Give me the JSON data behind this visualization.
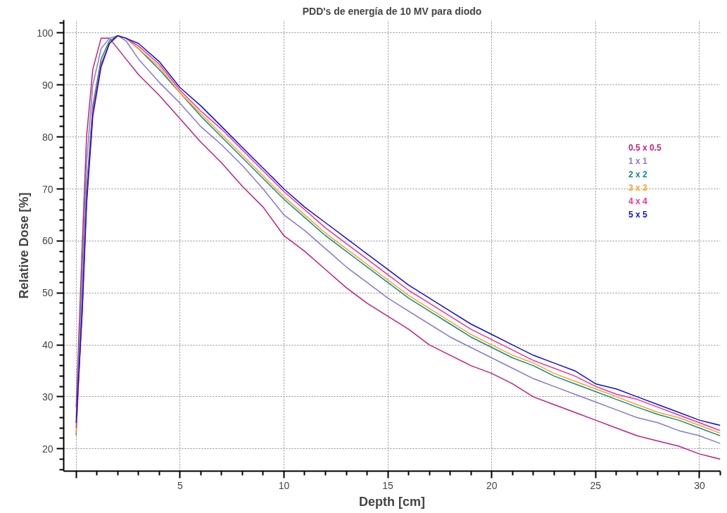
{
  "chart_data": {
    "type": "line",
    "title": "PDD's de energía de 10 MV para diodo",
    "xlabel": "Depth [cm]",
    "ylabel": "Relative Dose [%]",
    "x": [
      0,
      0.3,
      0.5,
      0.8,
      1.2,
      1.6,
      2,
      2.4,
      3,
      4,
      5,
      6,
      7,
      8,
      9,
      10,
      11,
      12,
      13,
      14,
      15,
      16,
      17,
      18,
      19,
      20,
      21,
      22,
      23,
      24,
      25,
      26,
      27,
      28,
      29,
      30,
      31
    ],
    "xlim": [
      -0.6,
      31
    ],
    "ylim": [
      15.7,
      102.5
    ],
    "xticks": [
      {
        "value": 0,
        "label": null
      },
      5,
      10,
      15,
      20,
      25,
      30
    ],
    "yticks": [
      20,
      30,
      40,
      50,
      60,
      70,
      80,
      90,
      100
    ],
    "grid": true,
    "legend": "right",
    "line_style": "solid",
    "series": [
      {
        "name": "0.5 x 0.5",
        "color": "#c02080",
        "values": [
          28,
          60,
          80,
          93,
          99,
          99,
          97,
          95,
          92,
          88,
          83.5,
          79,
          75,
          70.5,
          66.5,
          61,
          58,
          54.5,
          51,
          48,
          45.5,
          43,
          40,
          38,
          36,
          34.5,
          32.5,
          30,
          28.5,
          27,
          25.5,
          24,
          22.5,
          21.5,
          20.5,
          19,
          18
        ]
      },
      {
        "name": "1 x 1",
        "color": "#8878d0",
        "values": [
          26,
          55,
          75,
          90,
          97,
          99,
          99.5,
          98.5,
          95,
          90.5,
          86.5,
          82,
          78.5,
          74.5,
          70,
          65,
          62,
          58.5,
          55,
          52,
          49,
          46.5,
          44,
          41.5,
          39.5,
          37.5,
          35.5,
          33.5,
          32,
          30.5,
          29,
          27.5,
          26,
          25,
          23.5,
          22.5,
          21
        ]
      },
      {
        "name": "2 x 2",
        "color": "#148a80",
        "values": [
          22.6,
          50,
          70,
          86,
          95,
          98.5,
          99.5,
          99,
          97,
          93,
          88.5,
          84,
          80,
          76,
          72,
          68,
          64.5,
          61,
          58,
          55,
          52,
          49,
          46.5,
          44,
          41.5,
          39.5,
          37.5,
          36,
          34,
          32.5,
          31,
          29.5,
          28,
          26.6,
          25.5,
          24,
          22.5
        ]
      },
      {
        "name": "3 x 3",
        "color": "#f5a623",
        "values": [
          23,
          48,
          68,
          85,
          94,
          98,
          99.5,
          99,
          97,
          93.5,
          88.5,
          84.5,
          80.5,
          76.5,
          72.5,
          68.5,
          65,
          61.5,
          58.5,
          55.5,
          52.5,
          49.5,
          47,
          44.5,
          42,
          40,
          38,
          36.5,
          34.5,
          33,
          31.5,
          30,
          28.5,
          27,
          26,
          24.5,
          23
        ]
      },
      {
        "name": "4 x 4",
        "color": "#f0309a",
        "values": [
          24,
          48,
          68,
          85,
          94,
          98,
          99.5,
          99,
          97.5,
          94,
          89,
          85,
          81.5,
          77.5,
          73.5,
          69.5,
          66,
          62.5,
          59.5,
          56.5,
          53.5,
          50.5,
          48,
          45.5,
          43,
          41,
          39,
          37,
          35.5,
          34,
          32,
          30.5,
          29.5,
          28,
          26.5,
          25,
          23.5
        ]
      },
      {
        "name": "5 x 5",
        "color": "#1010d0",
        "values": [
          25,
          47,
          67,
          84,
          93.5,
          98,
          99.5,
          99,
          98,
          94.5,
          89.5,
          86,
          82,
          78,
          74,
          70,
          66.5,
          63.5,
          60.5,
          57.5,
          54.5,
          51.5,
          49,
          46.5,
          44,
          42,
          40,
          38,
          36.5,
          35,
          32.5,
          31.5,
          30,
          28.5,
          27,
          25.5,
          24.5
        ]
      }
    ]
  }
}
